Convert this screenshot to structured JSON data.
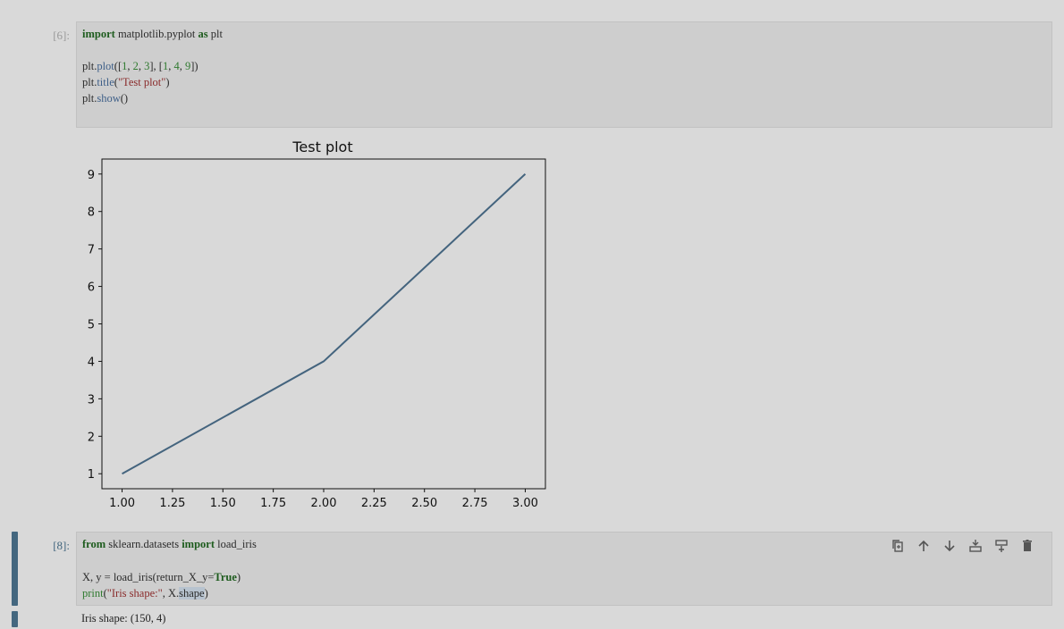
{
  "cells": [
    {
      "prompt": "[6]:",
      "code": {
        "line1": {
          "k1": "import",
          "t1": " matplotlib.pyplot ",
          "k2": "as",
          "t2": " plt"
        },
        "line3": {
          "a": "plt.",
          "b": "plot",
          "c": "([",
          "n1": "1",
          "c1": ", ",
          "n2": "2",
          "c2": ", ",
          "n3": "3",
          "c3": "], [",
          "n4": "1",
          "c4": ", ",
          "n5": "4",
          "c5": ", ",
          "n6": "9",
          "c6": "])"
        },
        "line4": {
          "a": "plt.",
          "b": "title",
          "c": "(",
          "s": "\"Test plot\"",
          "d": ")"
        },
        "line5": {
          "a": "plt.",
          "b": "show",
          "c": "()"
        }
      }
    },
    {
      "prompt": "[8]:",
      "code": {
        "line1": {
          "k1": "from",
          "t1": " sklearn.datasets ",
          "k2": "import",
          "t2": " load_iris"
        },
        "line3": {
          "a": "X, y = load_iris(return_X_y=",
          "k": "True",
          "b": ")"
        },
        "line4": {
          "p": "print",
          "a": "(",
          "s": "\"Iris shape:\"",
          "b": ", X.",
          "sel": "shape",
          "c": ")"
        }
      },
      "output": "Iris shape: (150, 4)",
      "toolbar": [
        "duplicate-icon",
        "move-up-icon",
        "move-down-icon",
        "insert-above-icon",
        "insert-below-icon",
        "delete-icon"
      ]
    }
  ],
  "chart_data": {
    "type": "line",
    "title": "Test plot",
    "x": [
      1,
      2,
      3
    ],
    "y": [
      1,
      4,
      9
    ],
    "xlim": [
      0.9,
      3.1
    ],
    "ylim": [
      0.6,
      9.4
    ],
    "xticks": [
      "1.00",
      "1.25",
      "1.50",
      "1.75",
      "2.00",
      "2.25",
      "2.50",
      "2.75",
      "3.00"
    ],
    "xtick_values": [
      1.0,
      1.25,
      1.5,
      1.75,
      2.0,
      2.25,
      2.5,
      2.75,
      3.0
    ],
    "yticks": [
      "1",
      "2",
      "3",
      "4",
      "5",
      "6",
      "7",
      "8",
      "9"
    ],
    "ytick_values": [
      1,
      2,
      3,
      4,
      5,
      6,
      7,
      8,
      9
    ],
    "line_color": "#44647e",
    "grid": false
  },
  "colors": {
    "background": "#d9d9d9",
    "editor": "#cecece",
    "accent": "#44677f"
  }
}
